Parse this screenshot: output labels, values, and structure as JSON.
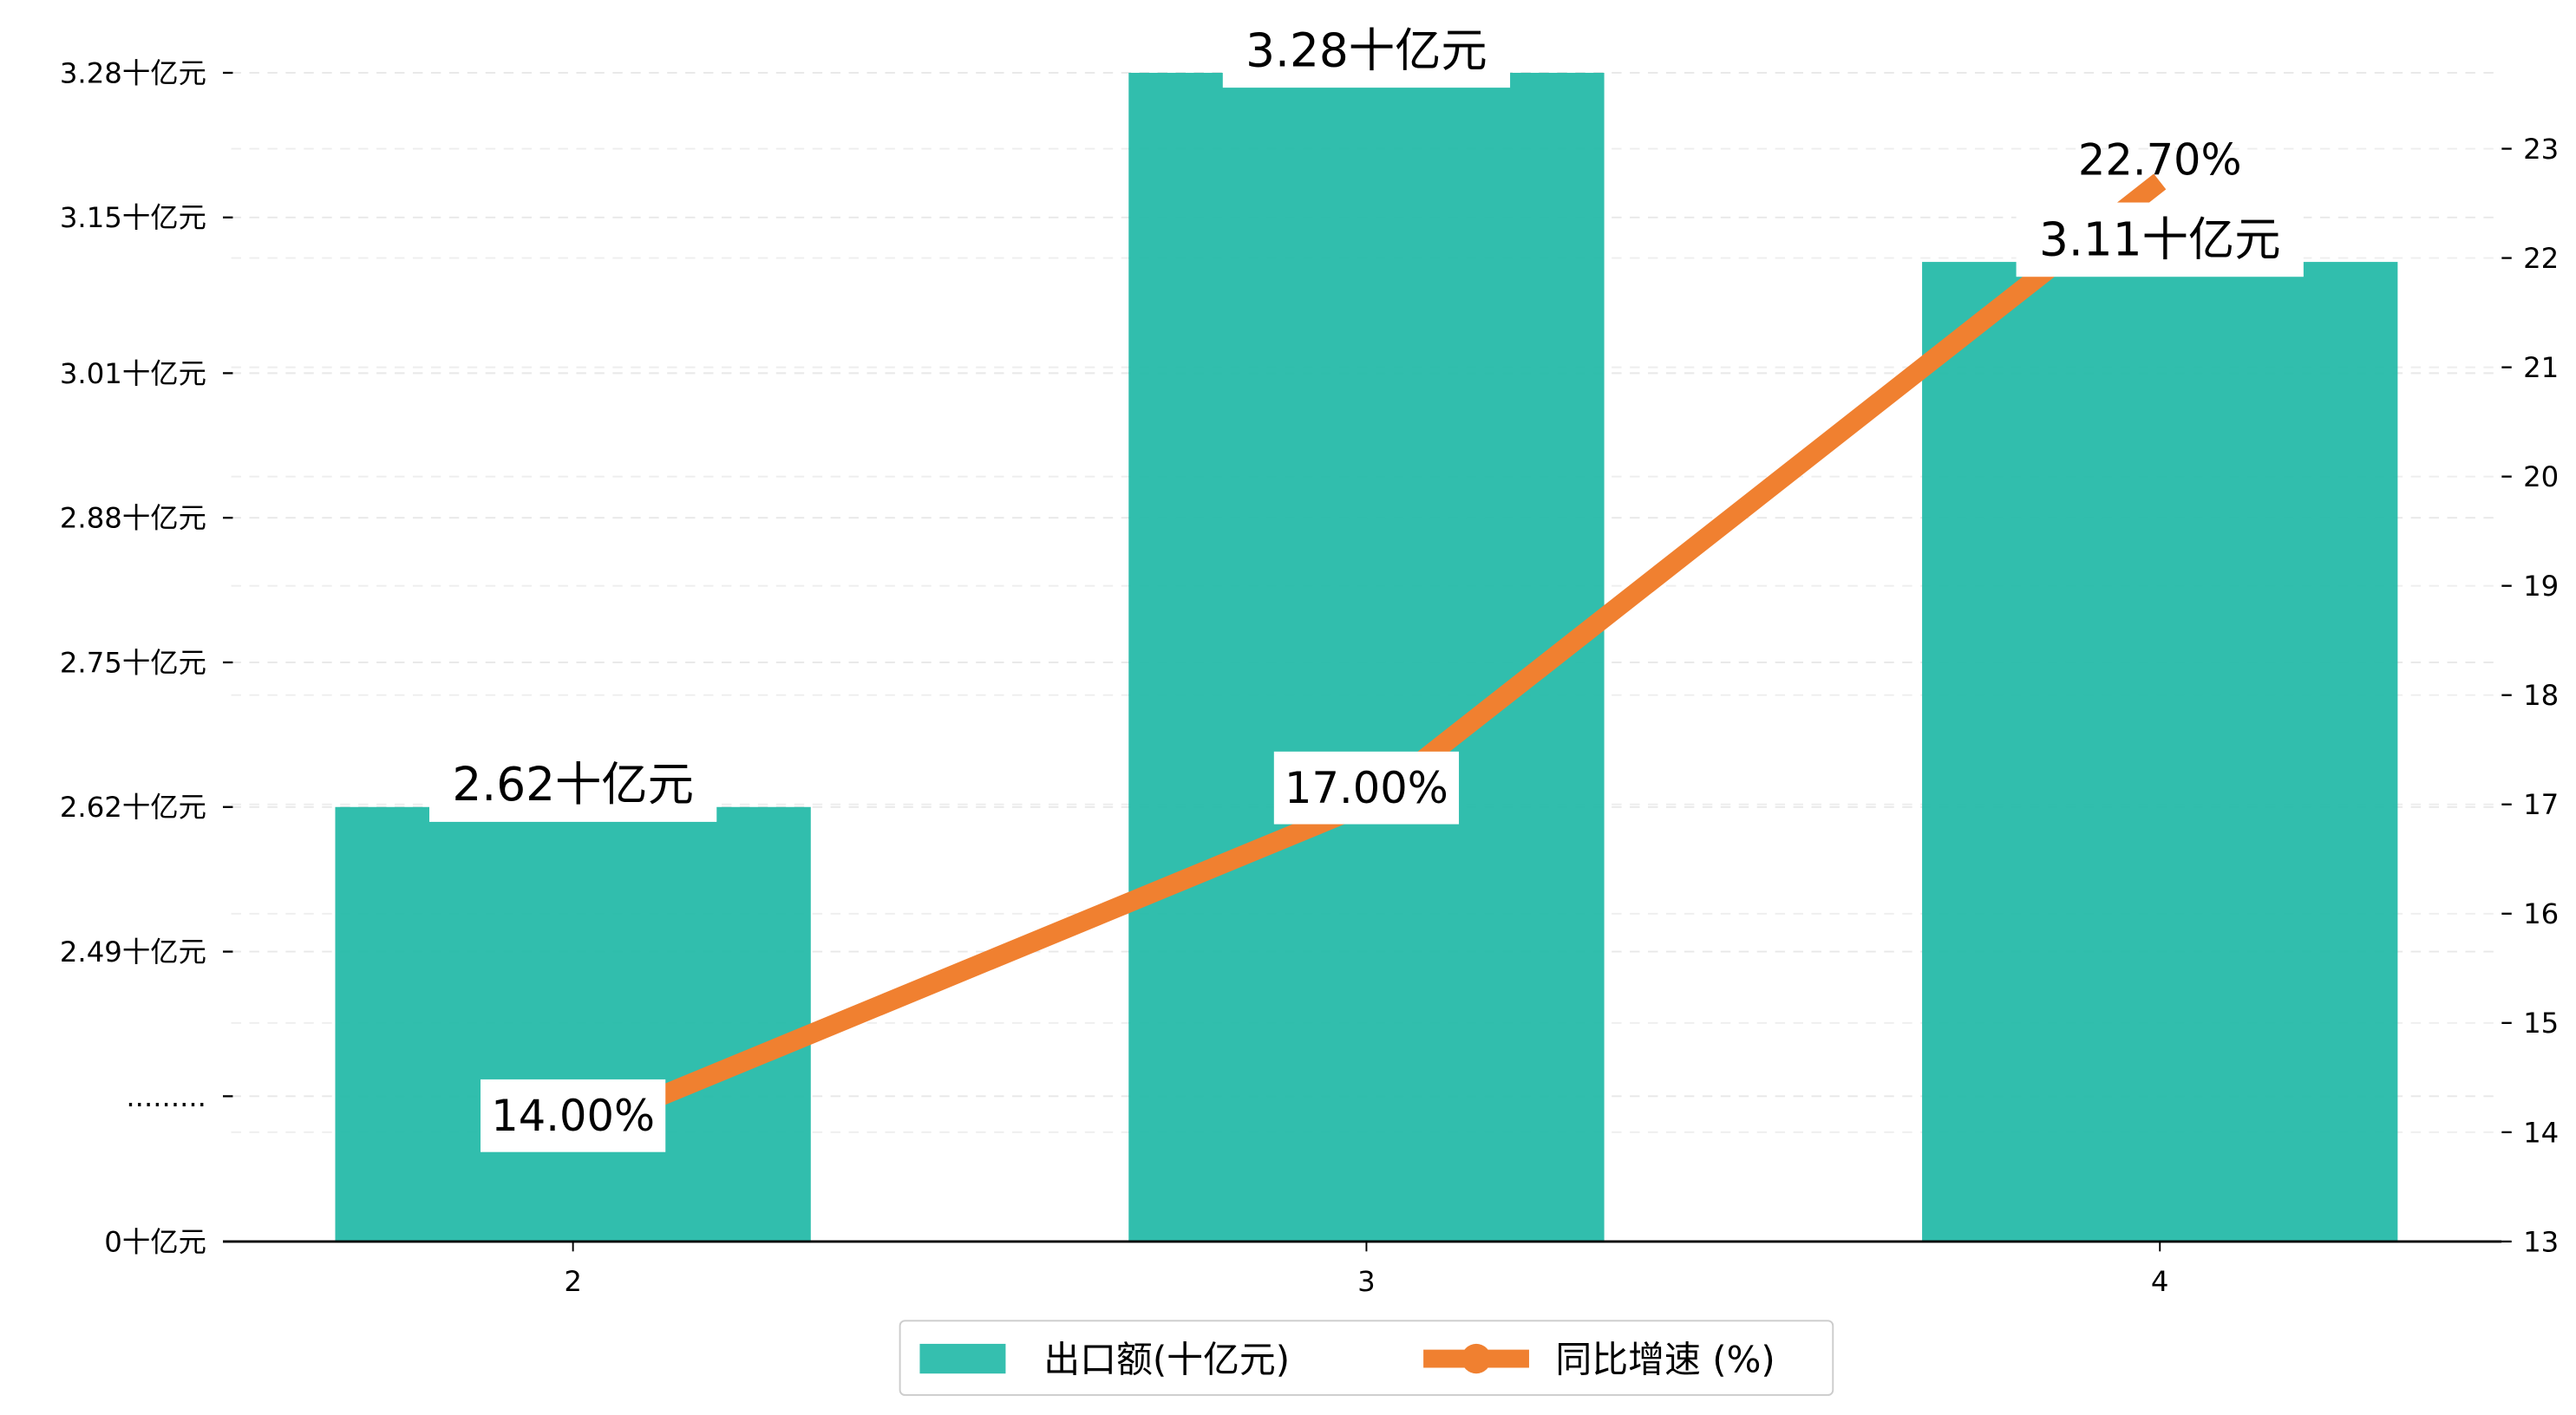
{
  "chart_data": {
    "type": "bar+line",
    "title": "",
    "xlabel": "",
    "categories": [
      "2",
      "3",
      "4"
    ],
    "series": [
      {
        "name": "出口额(十亿元)",
        "type": "bar",
        "axis": "left",
        "values": [
          2.62,
          3.28,
          3.11
        ],
        "labels": [
          "2.62十亿元",
          "3.28十亿元",
          "3.11十亿元"
        ],
        "color": "#1fb8a6"
      },
      {
        "name": "同比增速 (%)",
        "type": "line",
        "axis": "right",
        "values": [
          14.0,
          17.0,
          22.7
        ],
        "labels": [
          "14.00%",
          "17.00%",
          "22.70%"
        ],
        "color": "#f08030"
      }
    ],
    "left_axis": {
      "broken": true,
      "ticks": [
        {
          "value": 0,
          "label": "0十亿元"
        },
        {
          "value": 2.36,
          "label": "........."
        },
        {
          "value": 2.49,
          "label": "2.49十亿元"
        },
        {
          "value": 2.62,
          "label": "2.62十亿元"
        },
        {
          "value": 2.75,
          "label": "2.75十亿元"
        },
        {
          "value": 2.88,
          "label": "2.88十亿元"
        },
        {
          "value": 3.01,
          "label": "3.01十亿元"
        },
        {
          "value": 3.15,
          "label": "3.15十亿元"
        },
        {
          "value": 3.28,
          "label": "3.28十亿元"
        }
      ]
    },
    "right_axis": {
      "ylim": [
        13,
        23
      ],
      "ticks": [
        "13",
        "14",
        "15",
        "16",
        "17",
        "18",
        "19",
        "20",
        "21",
        "22",
        "23"
      ]
    },
    "grid": true,
    "legend_position": "bottom-center"
  }
}
